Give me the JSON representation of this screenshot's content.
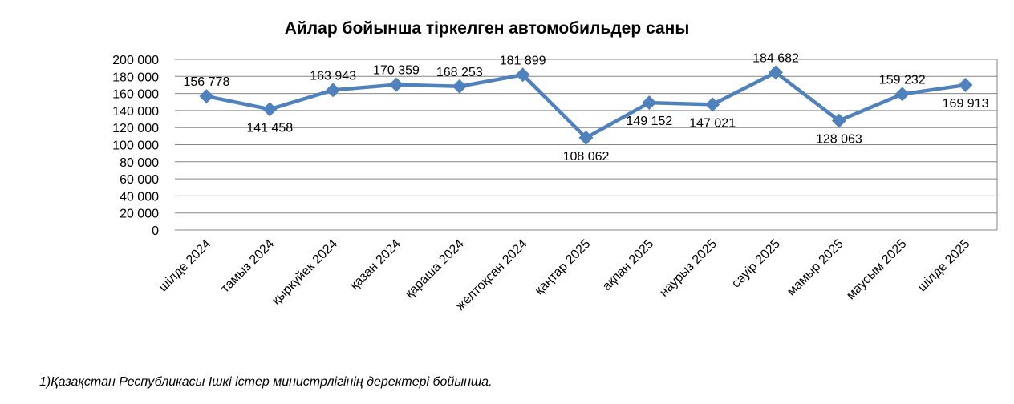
{
  "chart_data": {
    "type": "line",
    "title": "Айлар бойынша тіркелген автомобильдер саны",
    "xlabel": "",
    "ylabel": "",
    "categories": [
      "шілде 2024",
      "тамыз 2024",
      "қыркүйек 2024",
      "қазан 2024",
      "қараша 2024",
      "желтоқсан 2024",
      "қаңтар 2025",
      "ақпан 2025",
      "наурыз 2025",
      "сәуір 2025",
      "мамыр 2025",
      "маусым 2025",
      "шілде 2025"
    ],
    "series": [
      {
        "values": [
          156778,
          141458,
          163943,
          170359,
          168253,
          181899,
          108062,
          149152,
          147021,
          184682,
          128063,
          159232,
          169913
        ],
        "labels": [
          "156 778",
          "141 458",
          "163 943",
          "170 359",
          "168 253",
          "181 899",
          "108 062",
          "149 152",
          "147 021",
          "184 682",
          "128 063",
          "159 232",
          "169 913"
        ],
        "color": "#4F81BD"
      }
    ],
    "ylim": [
      0,
      200000
    ],
    "yticks": [
      0,
      20000,
      40000,
      60000,
      80000,
      100000,
      120000,
      140000,
      160000,
      180000,
      200000
    ],
    "ytick_labels": [
      "0",
      "20 000",
      "40 000",
      "60 000",
      "80 000",
      "100 000",
      "120 000",
      "140 000",
      "160 000",
      "180 000",
      "200 000"
    ],
    "grid": true,
    "legend": "none",
    "marker": "diamond",
    "label_positions": [
      "above",
      "below",
      "above",
      "above",
      "above",
      "above",
      "below",
      "below",
      "below",
      "above",
      "below",
      "above",
      "below"
    ]
  },
  "footnote": "1)Қазақстан Республикасы Ішкі істер министрлігінің деректері бойынша."
}
